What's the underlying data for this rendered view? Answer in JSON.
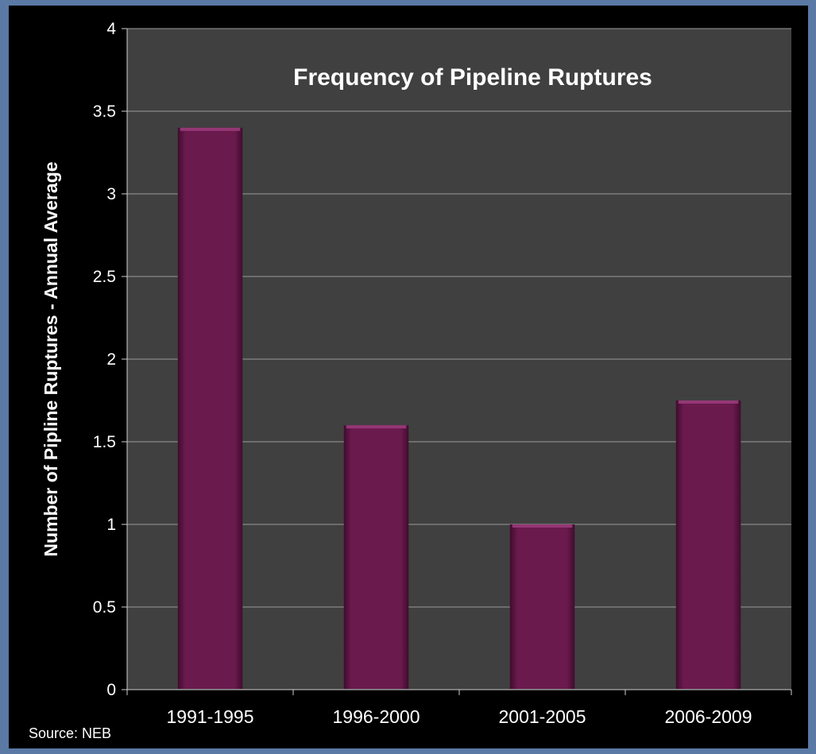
{
  "chart_data": {
    "type": "bar",
    "title": "Frequency of Pipeline Ruptures",
    "xlabel": "",
    "ylabel": "Number of Pipline Ruptures - Annual Average",
    "categories": [
      "1991-1995",
      "1996-2000",
      "2001-2005",
      "2006-2009"
    ],
    "values": [
      3.4,
      1.6,
      1.0,
      1.75
    ],
    "ylim": [
      0,
      4
    ],
    "yticks": [
      "0",
      "0.5",
      "1",
      "1.5",
      "2",
      "2.5",
      "3",
      "3.5",
      "4"
    ],
    "grid": true,
    "legend": "none",
    "source": "Source: NEB"
  },
  "colors": {
    "background": "#5a79a5",
    "frame": "#000000",
    "plot_area": "#404040",
    "gridline": "#9a9a9a",
    "bar": "#6b1a4e",
    "bar_highlight": "#9a3b7a",
    "text": "#ffffff"
  }
}
